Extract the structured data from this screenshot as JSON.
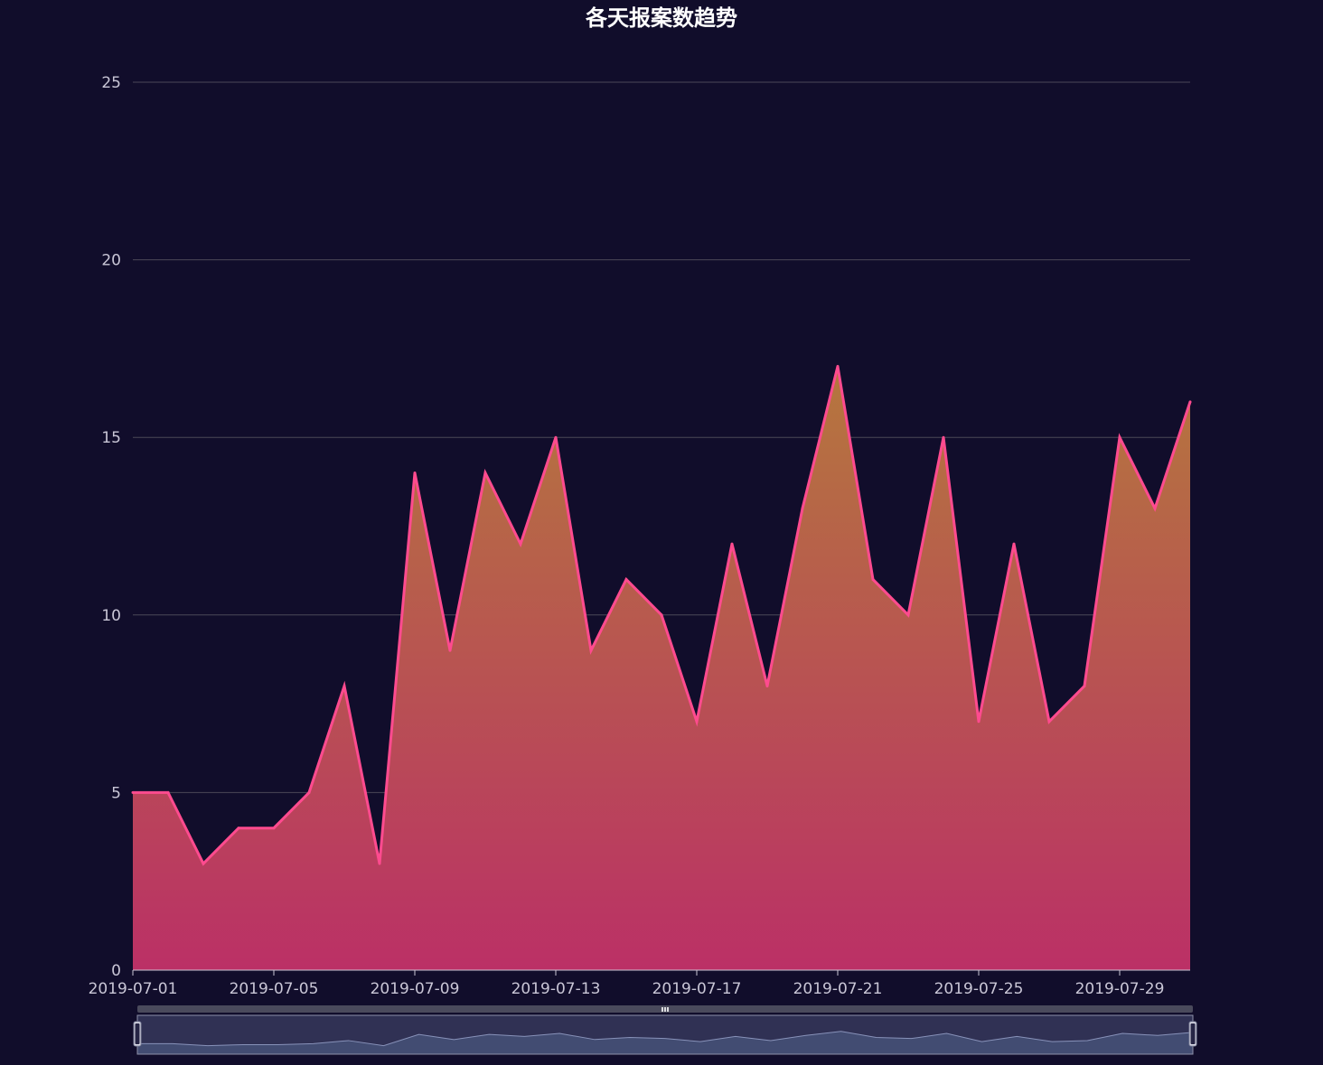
{
  "chart_data": {
    "type": "area",
    "title": "各天报案数趋势",
    "xlabel": "",
    "ylabel": "",
    "ylim": [
      0,
      25
    ],
    "y_ticks": [
      "0",
      "5",
      "10",
      "15",
      "20",
      "25"
    ],
    "x_tick_labels": [
      "2019-07-01",
      "2019-07-05",
      "2019-07-09",
      "2019-07-13",
      "2019-07-17",
      "2019-07-21",
      "2019-07-25",
      "2019-07-29"
    ],
    "grid": true,
    "legend": "none",
    "categories": [
      "2019-07-01",
      "2019-07-02",
      "2019-07-03",
      "2019-07-04",
      "2019-07-05",
      "2019-07-06",
      "2019-07-07",
      "2019-07-08",
      "2019-07-09",
      "2019-07-10",
      "2019-07-11",
      "2019-07-12",
      "2019-07-13",
      "2019-07-14",
      "2019-07-15",
      "2019-07-16",
      "2019-07-17",
      "2019-07-18",
      "2019-07-19",
      "2019-07-20",
      "2019-07-21",
      "2019-07-22",
      "2019-07-23",
      "2019-07-24",
      "2019-07-25",
      "2019-07-26",
      "2019-07-27",
      "2019-07-28",
      "2019-07-29",
      "2019-07-30",
      "2019-07-31"
    ],
    "series": [
      {
        "values": [
          5,
          5,
          3,
          4,
          4,
          5,
          8,
          3,
          14,
          9,
          14,
          12,
          15,
          9,
          11,
          10,
          7,
          12,
          8,
          13,
          17,
          11,
          10,
          15,
          7,
          12,
          7,
          8,
          15,
          13,
          16
        ]
      }
    ],
    "colors": {
      "line": "#ff4b8f",
      "fill_top": "#b5773d",
      "fill_bottom": "#bb3066",
      "background": "#110d2b"
    },
    "data_zoom": {
      "start_percent": 0,
      "end_percent": 100
    }
  }
}
